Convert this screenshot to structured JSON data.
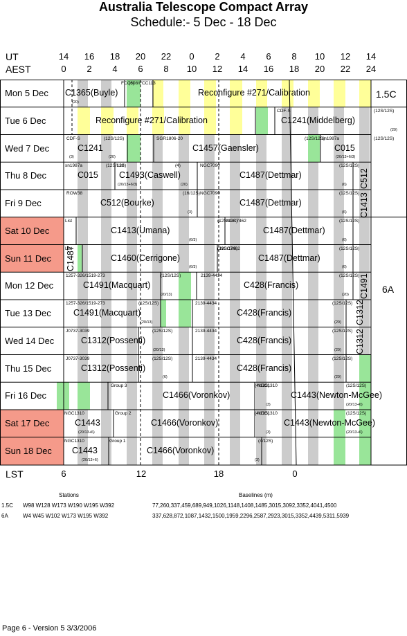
{
  "title": "Australia Telescope Compact Array",
  "subtitle": "Schedule:- 5  Dec - 18 Dec",
  "axis": {
    "ut_label": "UT",
    "aest_label": "AEST",
    "lst_label": "LST",
    "ut_ticks": [
      "14",
      "16",
      "18",
      "20",
      "22",
      "0",
      "2",
      "4",
      "6",
      "8",
      "10",
      "12",
      "14"
    ],
    "aest_ticks": [
      "0",
      "2",
      "4",
      "6",
      "8",
      "10",
      "12",
      "14",
      "16",
      "18",
      "20",
      "22",
      "24"
    ],
    "lst_ticks": [
      "6",
      "12",
      "18",
      "0"
    ]
  },
  "days": [
    {
      "label": "Mon   5  Dec",
      "weekend": false
    },
    {
      "label": "Tue   6  Dec",
      "weekend": false
    },
    {
      "label": "Wed   7  Dec",
      "weekend": false
    },
    {
      "label": "Thu   8  Dec",
      "weekend": false
    },
    {
      "label": "Fri   9  Dec",
      "weekend": false
    },
    {
      "label": "Sat  10 Dec",
      "weekend": true
    },
    {
      "label": "Sun  11 Dec",
      "weekend": true
    },
    {
      "label": "Mon  12 Dec",
      "weekend": false
    },
    {
      "label": "Tue   13  Dec",
      "weekend": false
    },
    {
      "label": "Wed  14  Dec",
      "weekend": false
    },
    {
      "label": "Thu   15  Dec",
      "weekend": false
    },
    {
      "label": "Fri   16  Dec",
      "weekend": false
    },
    {
      "label": "Sat   17  Dec",
      "weekend": true
    },
    {
      "label": "Sun   18  Dec",
      "weekend": true
    }
  ],
  "configs": [
    {
      "label": "1.5C"
    },
    {
      "label": "6A"
    }
  ],
  "programs": [
    {
      "row": 0,
      "label": "C1365(Buyle)",
      "source": "FCC308/FCC113",
      "band": "(6)",
      "note": "(20)"
    },
    {
      "row": 0,
      "label": "Reconfigure #271/Calibration"
    },
    {
      "row": 1,
      "label": "Reconfigure #271/Calibration"
    },
    {
      "row": 1,
      "label": "C1241(Middelberg)",
      "source": "CDF-S",
      "band": "(12S/12S)",
      "note": "(20)"
    },
    {
      "row": 2,
      "label": "C1241",
      "source": "CDF-S",
      "band": "(12S/12S)",
      "note": "(20)"
    },
    {
      "row": 2,
      "label": "C1457(Gaensler)",
      "source": "SGR1806-20",
      "band": "(12S/12S)",
      "note": "(3)"
    },
    {
      "row": 2,
      "label": "C015",
      "source": "sn1987a",
      "band": "(12S/12S)",
      "note": "(20/13+6/3)"
    },
    {
      "row": 3,
      "label": "C015",
      "source": "sn1987a",
      "band": "(12S/12S)",
      "note": "(20/13+6/3)"
    },
    {
      "row": 3,
      "label": "C1493(Caswell)",
      "source": "List",
      "band": "(4)",
      "note": "(20)"
    },
    {
      "row": 3,
      "label": "C1487(Dettmar)",
      "source": "NGC7090",
      "band": "(12S/12S)",
      "note": "(6)"
    },
    {
      "row": 4,
      "label": "C512(Bourke)",
      "source": "ROW38",
      "band": "(16/12S)",
      "note": "(3)"
    },
    {
      "row": 4,
      "label": "C1487(Dettmar)",
      "source": "NGC7090",
      "band": "(12S/12S)",
      "note": "(6)"
    },
    {
      "row": 5,
      "label": "C1413(Umana)",
      "source": "List",
      "band": "(12S/12S)",
      "note": "(6/3)"
    },
    {
      "row": 5,
      "label": "C1487(Dettmar)",
      "source": "NGC7462",
      "band": "(12S/12S)",
      "note": "(6)"
    },
    {
      "row": 6,
      "label": "C1460(Cerrigone)",
      "source": "List",
      "band": "(12S/12S)",
      "note": "(6/3)"
    },
    {
      "row": 6,
      "label": "C1487(Dettmar)",
      "source": "NGC7462",
      "band": "(12S/12S)",
      "note": "(6)"
    },
    {
      "row": 7,
      "label": "C1491(Macquart)",
      "source": "1257-326/1519-273",
      "band": "(12S/12S)",
      "note": "(20/13)"
    },
    {
      "row": 7,
      "label": "C428(Francis)",
      "source": "2139-4434",
      "band": "(12S/12S)",
      "note": "(20)"
    },
    {
      "row": 8,
      "label": "C1491(Macquart)",
      "source": "1257-326/1519-273",
      "band": "(12S/12S)",
      "note": "(20/13)"
    },
    {
      "row": 8,
      "label": "C428(Francis)",
      "source": "2139-4434",
      "band": "(12S/12S)",
      "note": "(20)"
    },
    {
      "row": 9,
      "label": "C1312(Possenti)",
      "source": "J0737-3039",
      "band": "(12S/12S)",
      "note": "(20/13)"
    },
    {
      "row": 9,
      "label": "C428(Francis)",
      "source": "2139-4434",
      "band": "(12S/12S)",
      "note": "(20)"
    },
    {
      "row": 10,
      "label": "C1312(Possenti)",
      "source": "J0737-3039",
      "band": "(12S/12S)",
      "note": "(6)"
    },
    {
      "row": 10,
      "label": "C428(Francis)",
      "source": "2139-4434",
      "band": "(12S/12S)",
      "note": "(20)"
    },
    {
      "row": 11,
      "label": "C1466(Voronkov)",
      "source": "Group 3",
      "band": "(4/12S)",
      "note": "(3)"
    },
    {
      "row": 11,
      "label": "C1443(Newton-McGee)",
      "source": "NGC1310",
      "band": "(12S/12S)",
      "note": "(20/13+6)"
    },
    {
      "row": 12,
      "label": "C1443",
      "source": "NGC1310",
      "band": "",
      "note": "(20/13+6)"
    },
    {
      "row": 12,
      "label": "C1466(Voronkov)",
      "source": "Group 2",
      "band": "(4/12S)",
      "note": "(3)"
    },
    {
      "row": 12,
      "label": "C1443(Newton-McGee)",
      "source": "NGC1310",
      "band": "(12S/12S)",
      "note": "(20/13+6)"
    },
    {
      "row": 13,
      "label": "C1443",
      "source": "NGC1310",
      "band": "",
      "note": "(20/13+6)"
    },
    {
      "row": 13,
      "label": "C1466(Voronkov)",
      "source": "Group 1",
      "band": "(4/12S)",
      "note": "(3)"
    }
  ],
  "vertical_labels": [
    "C1487",
    "C1491",
    "C1312",
    "C1312",
    "C1413",
    "C512"
  ],
  "legend": {
    "stations_header": "Stations",
    "baselines_header": "Baselines (m)",
    "rows": [
      {
        "config": "1.5C",
        "stations": "W98 W128 W173 W190 W195 W392",
        "baselines": "77,260,337,459,689,949,1026,1148,1408,1485,3015,3092,3352,4041,4500"
      },
      {
        "config": "6A",
        "stations": "W4  W45 W102 W173 W195 W392",
        "baselines": "337,628,872,1087,1432,1500,1959,2296,2587,2923,3015,3352,4439,5311,5939"
      }
    ]
  },
  "footer": "Page 6 - Version 5  3/3/2006",
  "colors": {
    "weekend": "#f59a8a",
    "day_shade": "#cccccc",
    "green": "#99e599",
    "yellow": "#ffff99"
  }
}
